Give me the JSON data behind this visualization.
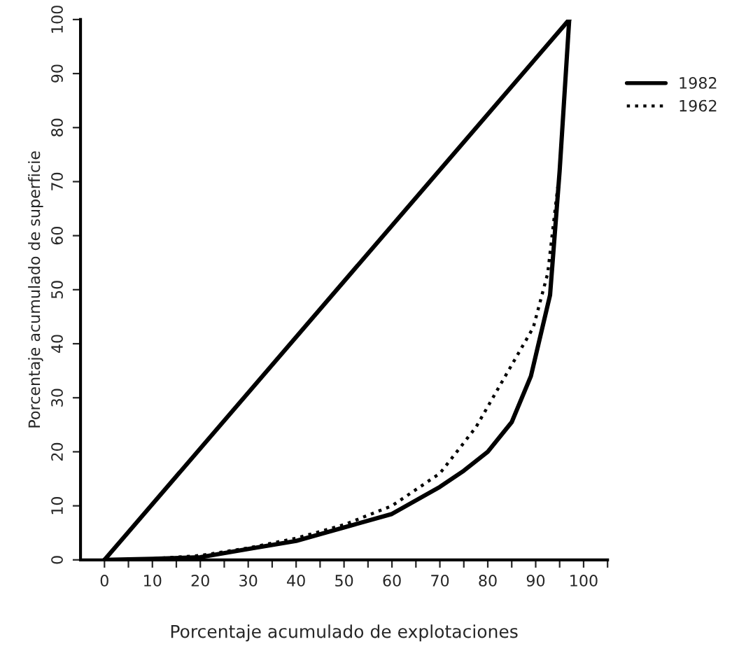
{
  "chart_data": {
    "type": "line",
    "xlabel": "Porcentaje acumulado de explotaciones",
    "ylabel": "Porcentaje acumulado de superficie",
    "xlim": [
      -5,
      105
    ],
    "ylim": [
      0,
      100
    ],
    "xticks": [
      0,
      {
        "value": 5,
        "label": null
      },
      10,
      {
        "value": 15,
        "label": null
      },
      20,
      {
        "value": 25,
        "label": null
      },
      30,
      {
        "value": 35,
        "label": null
      },
      40,
      {
        "value": 45,
        "label": null
      },
      50,
      {
        "value": 55,
        "label": null
      },
      60,
      {
        "value": 65,
        "label": null
      },
      70,
      {
        "value": 75,
        "label": null
      },
      80,
      {
        "value": 85,
        "label": null
      },
      90,
      {
        "value": 95,
        "label": null
      },
      100,
      {
        "value": 105,
        "label": null
      }
    ],
    "yticks": [
      0,
      10,
      20,
      30,
      40,
      50,
      60,
      70,
      80,
      90,
      100
    ],
    "grid": false,
    "legend": "top right",
    "marker": "none",
    "series": [
      {
        "color": "#000000",
        "line_style": "solid",
        "x": [
          0,
          97
        ],
        "values": [
          0,
          100
        ]
      },
      {
        "name": "1982",
        "color": "#000000",
        "line_style": "solid",
        "x": [
          0,
          10,
          20,
          30,
          40,
          50,
          60,
          70,
          75,
          80,
          85,
          89,
          93,
          95,
          97
        ],
        "values": [
          0,
          0.2,
          0.5,
          2,
          3.5,
          6,
          8.5,
          13.5,
          16.5,
          20,
          25.5,
          34,
          49,
          72,
          100
        ]
      },
      {
        "name": "1962",
        "color": "#000000",
        "line_style": "dotted",
        "x": [
          0,
          10,
          20,
          30,
          40,
          50,
          60,
          70,
          77.5,
          83,
          89.5,
          92.5,
          95,
          97
        ],
        "values": [
          0,
          0.2,
          0.8,
          2.2,
          4,
          6.5,
          10,
          16,
          24.5,
          33,
          43,
          53,
          72,
          100
        ]
      }
    ]
  }
}
